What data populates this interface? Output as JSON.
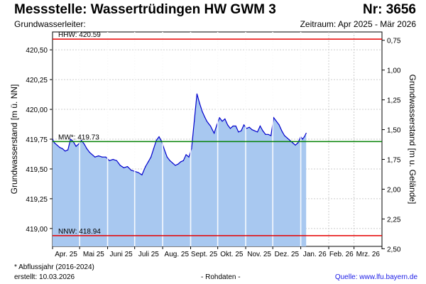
{
  "header": {
    "title": "Messstelle: Wassertrüdingen HW GWM 3",
    "number": "Nr: 3656",
    "aquifer": "Grundwasserleiter:",
    "period": "Zeitraum: Apr 2025 - Mär 2026"
  },
  "footer": {
    "footnote": "* Abflussjahr (2016-2024)",
    "created": "erstellt:  10.03.2026",
    "rawdata": "- Rohdaten -",
    "source": "Quelle: www.lfu.bayern.de"
  },
  "chart_data": {
    "type": "area",
    "ylabel": "Grundwasserstand [m ü. NN]",
    "ylabel_right": "Grundwasserstand [m u. Gelände]",
    "ylim": [
      418.85,
      420.65
    ],
    "yticks": [
      419.0,
      419.25,
      419.5,
      419.75,
      420.0,
      420.25,
      420.5
    ],
    "ytick_labels": [
      "419,00",
      "419,25",
      "419,50",
      "419,75",
      "420,00",
      "420,25",
      "420,50"
    ],
    "yticks_right": [
      0.75,
      1.0,
      1.25,
      1.5,
      1.75,
      2.0,
      2.25,
      2.5
    ],
    "ytick_labels_right": [
      "0,75",
      "1,00",
      "1,25",
      "1,50",
      "1,75",
      "2,00",
      "2,25",
      "2,50"
    ],
    "ground_level": 421.33,
    "xlim": [
      "2025-04-01",
      "2026-04-01"
    ],
    "xtick_labels": [
      "Apr. 25",
      "Mai 25",
      "Juni 25",
      "Juli 25",
      "Aug. 25",
      "Sept. 25",
      "Okt. 25",
      "Nov. 25",
      "Dez. 25",
      "Jan. 26",
      "Feb. 26",
      "Mrz. 26"
    ],
    "reference_lines": [
      {
        "label": "HHW: 420.59",
        "value": 420.59,
        "color": "#e60000"
      },
      {
        "label": "MW*: 419.73",
        "value": 419.73,
        "color": "#008000"
      },
      {
        "label": "NNW: 418.94",
        "value": 418.94,
        "color": "#e60000"
      }
    ],
    "grid": true,
    "colors": {
      "line": "#0000cc",
      "fill": "#a8c8f0",
      "month_lines": "#ffffff"
    },
    "series": [
      {
        "x": [
          "2025-04-01",
          "2025-04-03",
          "2025-04-06",
          "2025-04-09",
          "2025-04-12",
          "2025-04-15",
          "2025-04-18",
          "2025-04-21",
          "2025-04-24",
          "2025-04-27",
          "2025-04-30",
          "2025-05-03",
          "2025-05-06",
          "2025-05-09",
          "2025-05-12",
          "2025-05-15",
          "2025-05-18",
          "2025-05-22",
          "2025-05-26",
          "2025-05-30",
          "2025-06-03",
          "2025-06-07",
          "2025-06-11",
          "2025-06-15",
          "2025-06-19",
          "2025-06-23",
          "2025-06-27",
          "2025-07-01",
          "2025-07-05",
          "2025-07-09",
          "2025-07-13",
          "2025-07-16",
          "2025-07-19",
          "2025-07-22",
          "2025-07-25",
          "2025-07-28",
          "2025-07-31",
          "2025-08-03",
          "2025-08-06",
          "2025-08-09",
          "2025-08-12",
          "2025-08-15",
          "2025-08-18",
          "2025-08-21",
          "2025-08-24",
          "2025-08-27",
          "2025-08-30",
          "2025-09-02",
          "2025-09-05",
          "2025-09-08",
          "2025-09-11",
          "2025-09-14",
          "2025-09-17",
          "2025-09-19",
          "2025-09-21",
          "2025-09-23",
          "2025-09-25",
          "2025-09-27",
          "2025-09-30",
          "2025-10-03",
          "2025-10-06",
          "2025-10-09",
          "2025-10-12",
          "2025-10-15",
          "2025-10-18",
          "2025-10-21",
          "2025-10-24",
          "2025-10-27",
          "2025-10-30",
          "2025-11-02",
          "2025-11-05",
          "2025-11-08",
          "2025-11-11",
          "2025-11-14",
          "2025-11-17",
          "2025-11-20",
          "2025-11-23",
          "2025-11-26",
          "2025-11-29",
          "2025-12-02",
          "2025-12-05",
          "2025-12-08",
          "2025-12-11",
          "2025-12-14",
          "2025-12-17",
          "2025-12-20",
          "2025-12-23",
          "2025-12-26",
          "2025-12-29",
          "2026-01-01",
          "2026-01-03",
          "2026-01-05",
          "2026-01-07"
        ],
        "values": [
          419.75,
          419.72,
          419.7,
          419.68,
          419.67,
          419.65,
          419.66,
          419.75,
          419.73,
          419.69,
          419.71,
          419.74,
          419.71,
          419.67,
          419.64,
          419.62,
          419.6,
          419.61,
          419.6,
          419.6,
          419.57,
          419.58,
          419.57,
          419.53,
          419.51,
          419.52,
          419.49,
          419.48,
          419.47,
          419.45,
          419.52,
          419.56,
          419.6,
          419.67,
          419.74,
          419.77,
          419.73,
          419.66,
          419.6,
          419.57,
          419.55,
          419.53,
          419.54,
          419.56,
          419.57,
          419.62,
          419.6,
          419.67,
          419.9,
          420.13,
          420.05,
          419.98,
          419.93,
          419.9,
          419.88,
          419.86,
          419.83,
          419.8,
          419.87,
          419.93,
          419.9,
          419.92,
          419.87,
          419.84,
          419.86,
          419.86,
          419.81,
          419.82,
          419.87,
          419.84,
          419.85,
          419.83,
          419.82,
          419.81,
          419.86,
          419.82,
          419.79,
          419.79,
          419.78,
          419.93,
          419.9,
          419.87,
          419.82,
          419.78,
          419.76,
          419.74,
          419.72,
          419.7,
          419.72,
          419.77,
          419.75,
          419.77,
          419.8
        ]
      }
    ]
  }
}
